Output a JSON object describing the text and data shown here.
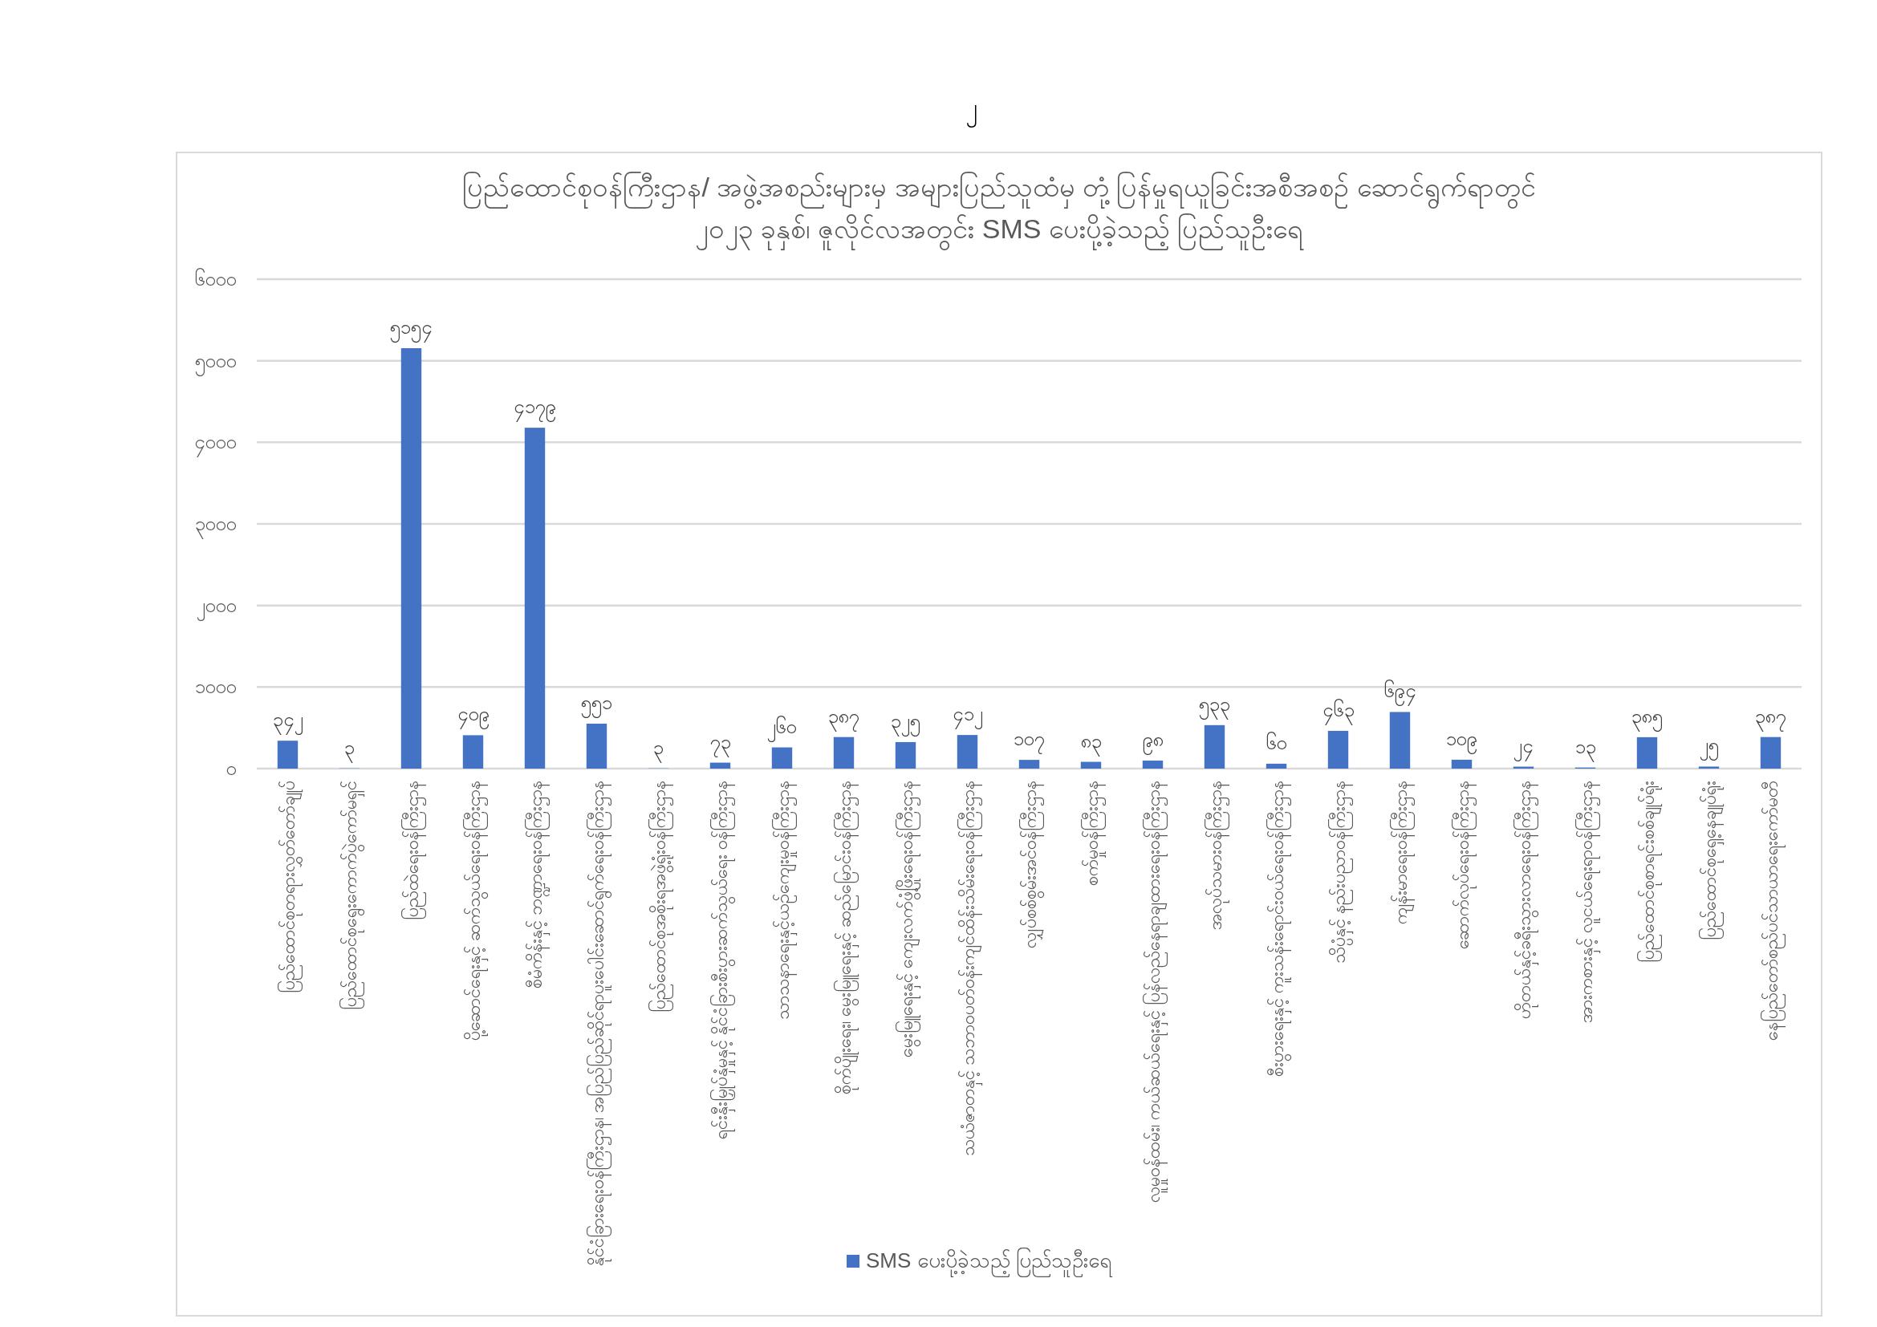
{
  "chart_data": {
    "type": "bar",
    "title": "ပြည်ထောင်စုဝန်ကြီးဌာန/ အဖွဲ့အစည်းများမှ အများပြည်သူထံမှ တုံ့ပြန်မှုရယူခြင်းအစီအစဉ် ဆောင်ရွက်ရာတွင်\n၂၀၂၃ ခုနှစ်၊ ဇူလိုင်လအတွင်း SMS ပေးပို့ခဲ့သည့် ပြည်သူဦးရေ",
    "annotations": [
      "၂"
    ],
    "categories": [
      "ပြည်ထောင်စုတရားလွှတ်တော်ချုပ်",
      "ပြည်ထောင်စုရွေးကောက်ပွဲကော်မရှင်",
      "ပြည်ထဲရေးဝန်ကြီးဌာန",
      "ပို့ဆောင်ရေးနှင့် ဆက်သွယ်ရေးဝန်ကြီးဌာန",
      "စီမံကိန်းနှင့် ဘဏ္ဍာရေးဝန်ကြီးဌာန",
      "နိုင်ငံခြားရေးဝန်ကြီးဌာန၊ အပြည်ပြည်ဆိုင်ရာပူးပေါင်းဆောင်ရွက်ရေးဝန်ကြီးဌာန",
      "ပြည်ထောင်စုအစိုးရအဖွဲ့ရုံးဝန်ကြီးဌာန",
      "ရင်းနှီးမြှုပ်နှံမှုနှင့် နိုင်ငံခြားစီးပွားဆက်သွယ်ရေး ဝန်ကြီးဌာန",
      "သာသနာရေးနှင့်ယဉ်ကျေးမှုဝန်ကြီးဌာန",
      "စိုက်ပျိုးရေး၊ မွေးမြူရေးနှင့် ဆည်မြောင်းဝန်ကြီးဌာန",
      "မွေးမြူရေးနှင့် ကျေးလက်ဖွံ့ဖြိုးရေးဝန်ကြီးဌာန",
      "သယံဇာတနှင့် သဘာဝပတ်ဝန်းကျင်ထိန်းသိမ်းရေးဝန်ကြီးဌာန",
      "လျှပ်စစ်စွမ်းအင်ဝန်ကြီးဌာန",
      "စက်မှုဝန်ကြီးဌာန",
      "လူမှုဝန်ထမ်း၊ ကယ်ဆယ်ရေးနှင့် ပြန်လည်နေရာချထားရေးဝန်ကြီးဌာန",
      "အလုပ်သမားဝန်ကြီးဌာန",
      "စီးပွားရေးနှင့် ကူးသန်းရောင်းဝယ်ရေးဝန်ကြီးဌာန",
      "သိပ္ပံနှင့် နည်းပညာဝန်ကြီးဌာန",
      "ကျန်းမာရေးဝန်ကြီးဌာန",
      "ဆောက်လုပ်ရေးဝန်ကြီးဌာန",
      "ဟိုတယ်နှင့်ခရီးသွားလာရေးဝန်ကြီးဌာန",
      "အားကစားနှင့် လူငယ်ရေးရာဝန်ကြီးဌာန",
      "ပြည်ထောင်စုစာရင်းစစ်ချုပ်ရုံး",
      "ပြည်ထောင်စုရှေ့နေချုပ်ရုံး",
      "နေပြည်တော်စည်ပင်သာယာရေးကော်မတီ"
    ],
    "series": [
      {
        "name": "SMS ပေးပို့ခဲ့သည့် ပြည်သူဦးရေ",
        "color": "#4472c4",
        "values": [
          342,
          3,
          5154,
          409,
          4179,
          551,
          3,
          73,
          260,
          387,
          325,
          412,
          107,
          83,
          98,
          533,
          60,
          463,
          694,
          109,
          24,
          13,
          385,
          25,
          387
        ],
        "value_labels": [
          "၃၄၂",
          "၃",
          "၅၁၅၄",
          "၄၀၉",
          "၄၁၇၉",
          "၅၅၁",
          "၃",
          "၇၃",
          "၂၆၀",
          "၃၈၇",
          "၃၂၅",
          "၄၁၂",
          "၁၀၇",
          "၈၃",
          "၉၈",
          "၅၃၃",
          "၆၀",
          "၄၆၃",
          "၆၉၄",
          "၁၀၉",
          "၂၄",
          "၁၃",
          "၃၈၅",
          "၂၅",
          "၃၈၇"
        ]
      }
    ],
    "ylim": [
      0,
      6000
    ],
    "yticks": [
      {
        "value": 0,
        "label": "၀"
      },
      {
        "value": 1000,
        "label": "၁၀၀၀"
      },
      {
        "value": 2000,
        "label": "၂၀၀၀"
      },
      {
        "value": 3000,
        "label": "၃၀၀၀"
      },
      {
        "value": 4000,
        "label": "၄၀၀၀"
      },
      {
        "value": 5000,
        "label": "၅၀၀၀"
      },
      {
        "value": 6000,
        "label": "၆၀၀၀"
      }
    ],
    "grid": "y",
    "legend": "bottom"
  }
}
